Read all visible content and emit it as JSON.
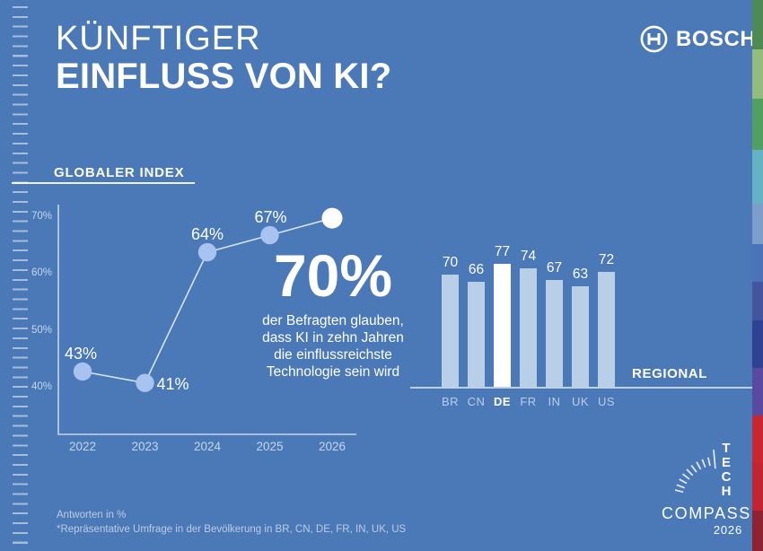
{
  "meta": {
    "title_line1": "KÜNFTIGER",
    "title_line2": "EINFLUSS VON KI?"
  },
  "brand": {
    "name": "BOSCH"
  },
  "chart_data": [
    {
      "type": "line",
      "title": "GLOBALER INDEX",
      "x": [
        "2022",
        "2023",
        "2024",
        "2025",
        "2026"
      ],
      "values": [
        43,
        41,
        64,
        67,
        70
      ],
      "point_labels": [
        "43%",
        "41%",
        "64%",
        "67%",
        ""
      ],
      "y_ticks": [
        "70%",
        "60%",
        "50%",
        "40%"
      ],
      "ylim": [
        32,
        72
      ],
      "grid": "off",
      "highlight_index": 4,
      "unit": "%"
    },
    {
      "type": "bar",
      "title": "REGIONAL",
      "categories": [
        "BR",
        "CN",
        "DE",
        "FR",
        "IN",
        "UK",
        "US"
      ],
      "values": [
        70,
        66,
        77,
        74,
        67,
        63,
        72
      ],
      "highlight_category": "DE",
      "unit": "%"
    }
  ],
  "callout": {
    "value": "70%",
    "lines": [
      "der Befragten glauben,",
      "dass KI in zehn Jahren",
      "die einflussreichste",
      "Technologie sein wird"
    ]
  },
  "footnotes": [
    "Antworten in %",
    "*Repräsentative Umfrage in der Bevölkerung in BR, CN, DE, FR, IN, UK, US"
  ],
  "logo_badge": {
    "vertical": "TECH",
    "word": "COMPASS",
    "year": "2026"
  },
  "colors": {
    "background": "#4b78b6",
    "bar": "#b9cfe7",
    "bar_highlight": "#ffffff",
    "dot": "#a8c3f0",
    "dot_highlight": "#ffffff",
    "line": "#d6e4f7",
    "axis": "rgba(255,255,255,0.68)",
    "muted_label": "#c3d7ee",
    "stripe": [
      {
        "color": "#4f8a55",
        "height": 55
      },
      {
        "color": "#94bc7e",
        "height": 55
      },
      {
        "color": "#52a061",
        "height": 57
      },
      {
        "color": "#64b2c3",
        "height": 60
      },
      {
        "color": "#7d9ecb",
        "height": 45
      },
      {
        "color": "#4a74b7",
        "height": 42
      },
      {
        "color": "#44549e",
        "height": 43
      },
      {
        "color": "#2e4193",
        "height": 53
      },
      {
        "color": "#5a49a0",
        "height": 53
      },
      {
        "color": "#c92730",
        "height": 53
      },
      {
        "color": "#c02531",
        "height": 53
      },
      {
        "color": "#8e2230",
        "height": 45
      }
    ]
  }
}
